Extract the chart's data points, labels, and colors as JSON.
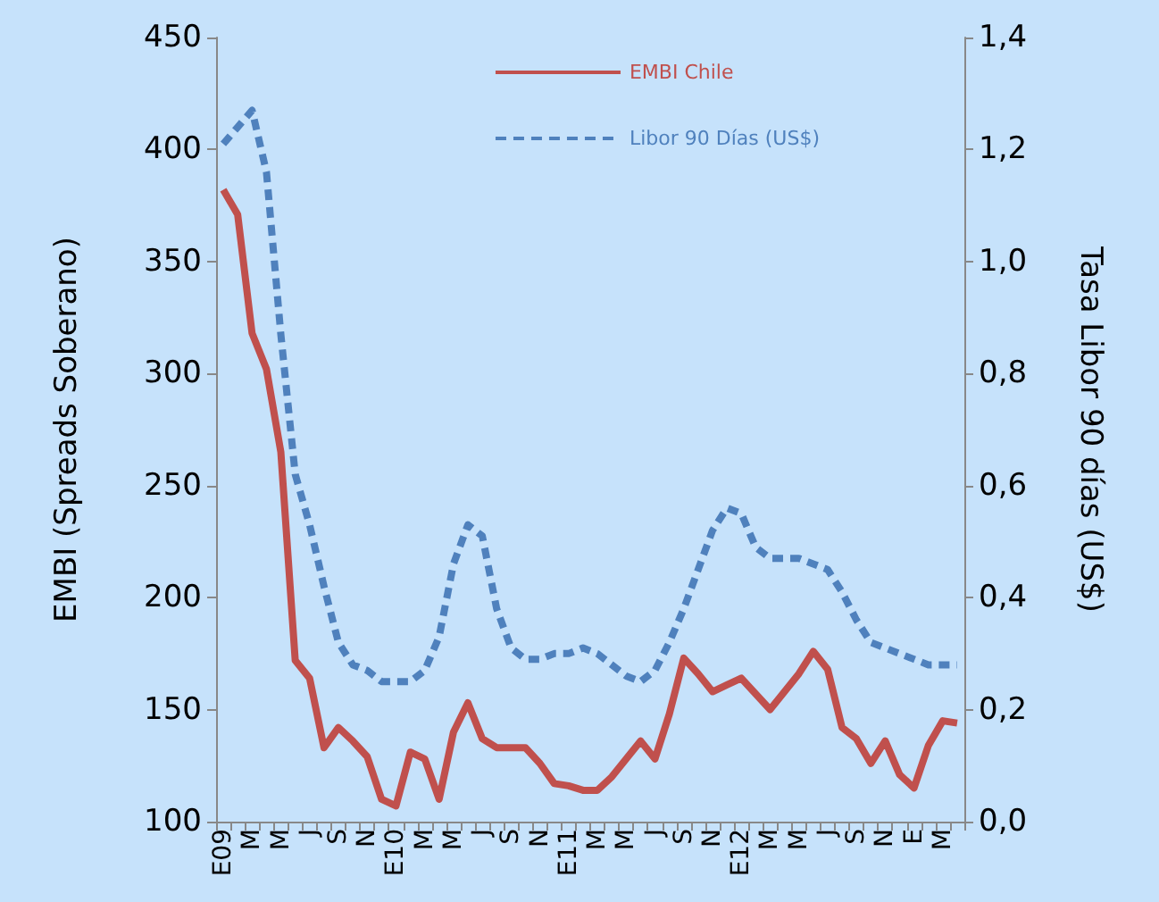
{
  "chart_data": {
    "type": "line",
    "ylabel": "EMBI (Spreads Soberano)",
    "y2label": "Tasa Libor 90 días (US$)",
    "categories": [
      "E09",
      null,
      "M",
      null,
      "M",
      null,
      "J",
      null,
      "S",
      null,
      "N",
      null,
      "E10",
      null,
      "M",
      null,
      "M",
      null,
      "J",
      null,
      "S",
      null,
      "N",
      null,
      "E11",
      null,
      "M",
      null,
      "M",
      null,
      "J",
      null,
      "S",
      null,
      "N",
      null,
      "E12",
      null,
      "M",
      null,
      "M",
      null,
      "J",
      null,
      "S",
      null,
      "N",
      null,
      "E",
      null,
      "M",
      null
    ],
    "series": [
      {
        "name": "EMBI Chile",
        "color": "#c0504d",
        "line_style": "solid",
        "values": [
          382,
          371,
          318,
          302,
          265,
          172,
          164,
          133,
          142,
          136,
          129,
          110,
          107,
          131,
          128,
          110,
          140,
          153,
          137,
          133,
          133,
          133,
          126,
          117,
          116,
          114,
          114,
          120,
          128,
          136,
          128,
          148,
          173,
          166,
          158,
          161,
          164,
          157,
          150,
          158,
          166,
          176,
          168,
          142,
          137,
          126,
          136,
          121,
          115,
          134,
          145,
          144
        ]
      },
      {
        "name": "Libor 90 Días (US$)",
        "color": "#4f81bd",
        "line_style": "dashed",
        "axis": "y2",
        "values": [
          1.21,
          1.24,
          1.27,
          1.16,
          0.87,
          0.62,
          0.53,
          0.42,
          0.32,
          0.28,
          0.27,
          0.25,
          0.25,
          0.25,
          0.27,
          0.33,
          0.46,
          0.53,
          0.51,
          0.38,
          0.31,
          0.29,
          0.29,
          0.3,
          0.3,
          0.31,
          0.3,
          0.28,
          0.26,
          0.25,
          0.27,
          0.32,
          0.38,
          0.45,
          0.52,
          0.56,
          0.55,
          0.49,
          0.47,
          0.47,
          0.47,
          0.46,
          0.45,
          0.41,
          0.36,
          0.32,
          0.31,
          0.3,
          0.29,
          0.28,
          0.28,
          0.28
        ]
      }
    ],
    "ylim": [
      100,
      450
    ],
    "yticks": [
      100,
      150,
      200,
      250,
      300,
      350,
      400,
      450
    ],
    "y2lim": [
      0,
      1.4
    ],
    "y2ticks": [
      {
        "value": 0,
        "label": "0,0"
      },
      {
        "value": 0.2,
        "label": "0,2"
      },
      {
        "value": 0.4,
        "label": "0,4"
      },
      {
        "value": 0.6,
        "label": "0,6"
      },
      {
        "value": 0.8,
        "label": "0,8"
      },
      {
        "value": 1.0,
        "label": "1,0"
      },
      {
        "value": 1.2,
        "label": "1,2"
      },
      {
        "value": 1.4,
        "label": "1,4"
      }
    ],
    "legend": "top right",
    "grid": false,
    "marker": "none"
  }
}
